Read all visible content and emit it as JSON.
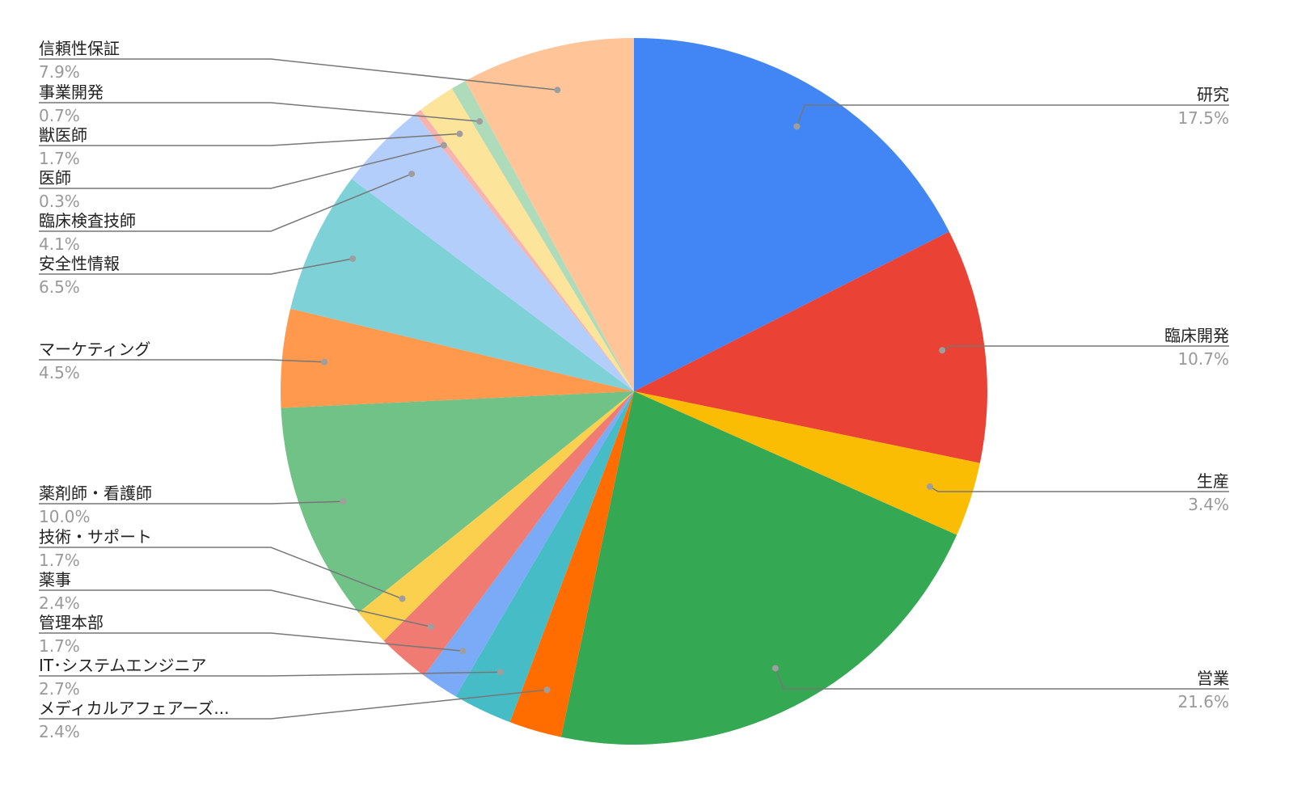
{
  "chart_data": {
    "type": "pie",
    "categories": [
      "研究",
      "臨床開発",
      "生産",
      "営業",
      "メディカルアフェアーズ...",
      "IT･システムエンジニア",
      "管理本部",
      "薬事",
      "技術・サポート",
      "薬剤師・看護師",
      "マーケティング",
      "安全性情報",
      "臨床検査技師",
      "医師",
      "獣医師",
      "事業開発",
      "信頼性保証"
    ],
    "values": [
      17.5,
      10.7,
      3.4,
      21.6,
      2.4,
      2.7,
      1.7,
      2.4,
      1.7,
      10.0,
      4.5,
      6.5,
      4.1,
      0.3,
      1.7,
      0.7,
      7.9
    ],
    "value_labels": [
      "17.5%",
      "10.7%",
      "3.4%",
      "21.6%",
      "2.4%",
      "2.7%",
      "1.7%",
      "2.4%",
      "1.7%",
      "10.0%",
      "4.5%",
      "6.5%",
      "4.1%",
      "0.3%",
      "1.7%",
      "0.7%",
      "7.9%"
    ],
    "colors": [
      "#4285f4",
      "#ea4335",
      "#fbbc04",
      "#34a853",
      "#ff6d01",
      "#46bdc6",
      "#7baaf7",
      "#f07b72",
      "#fcd04f",
      "#71c287",
      "#ff994d",
      "#7ed1d7",
      "#b3cefb",
      "#f7b4ae",
      "#fde49b",
      "#aedcba",
      "#ffc599"
    ]
  }
}
